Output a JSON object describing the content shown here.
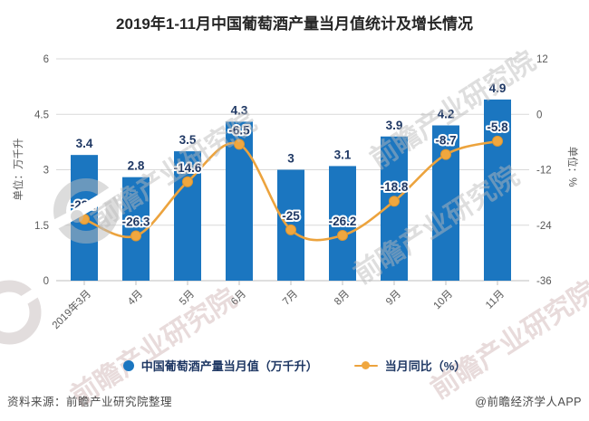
{
  "title": "2019年1-11月中国葡萄酒产量当月值统计及增长情况",
  "watermark": {
    "text": "前瞻产业研究院"
  },
  "footer": {
    "source": "资料来源：前瞻产业研究院整理",
    "credit": "@前瞻经济学人APP"
  },
  "colors": {
    "bar": "#1B76C0",
    "line": "#ECA33D",
    "marker_fill": "#F0A73F",
    "marker_stroke": "#DD9630",
    "value_label": "#1F3864",
    "grid": "#D9D9D9",
    "axis_line": "#BFBFBF",
    "tick_text": "#595959"
  },
  "chart_data": {
    "type": "bar",
    "subtype": "bar+line combo, dual y-axis",
    "title": "2019年1-11月中国葡萄酒产量当月值统计及增长情况",
    "categories": [
      "2019年3月",
      "4月",
      "5月",
      "6月",
      "7月",
      "8月",
      "9月",
      "10月",
      "11月"
    ],
    "series": [
      {
        "name": "中国葡萄酒产量当月值（万千升）",
        "type": "bar",
        "axis": "left",
        "values": [
          3.4,
          2.8,
          3.5,
          4.3,
          3,
          3.1,
          3.9,
          4.2,
          4.9
        ]
      },
      {
        "name": "当月同比（%）",
        "type": "line",
        "axis": "right",
        "values": [
          -22.7,
          -26.3,
          -14.6,
          -6.5,
          -25,
          -26.2,
          -18.8,
          -8.7,
          -5.8
        ]
      }
    ],
    "left_axis": {
      "label": "单位：万千升",
      "ticks": [
        0,
        1.5,
        3,
        4.5,
        6
      ],
      "range": [
        0,
        6
      ]
    },
    "right_axis": {
      "label": "单位：%",
      "ticks": [
        -36,
        -24,
        -12,
        0,
        12
      ],
      "range": [
        -36,
        12
      ]
    },
    "grid": true,
    "legend_position": "bottom",
    "data_labels": true,
    "line_smooth": true
  }
}
